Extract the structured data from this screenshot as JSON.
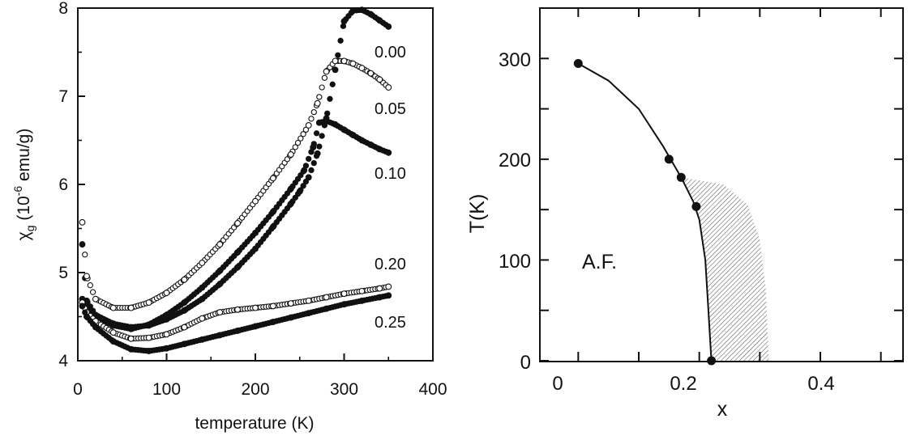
{
  "chart_data": [
    {
      "type": "scatter",
      "xlabel": "temperature (K)",
      "ylabel_main": "χ",
      "ylabel_sub": "g",
      "ylabel_rest": " (10",
      "ylabel_sup": "-6",
      "ylabel_units": " emu/g)",
      "xlim": [
        0,
        400
      ],
      "ylim": [
        4,
        8
      ],
      "xticks": [
        "0",
        "100",
        "200",
        "300",
        "400"
      ],
      "yticks": [
        "4",
        "5",
        "6",
        "7",
        "8"
      ],
      "grid": false,
      "series": [
        {
          "label": "0.00",
          "marker": "filled",
          "points": [
            [
              5,
              5.32
            ],
            [
              10,
              4.68
            ],
            [
              20,
              4.52
            ],
            [
              40,
              4.42
            ],
            [
              60,
              4.38
            ],
            [
              80,
              4.4
            ],
            [
              100,
              4.47
            ],
            [
              120,
              4.57
            ],
            [
              140,
              4.7
            ],
            [
              160,
              4.87
            ],
            [
              180,
              5.06
            ],
            [
              200,
              5.27
            ],
            [
              220,
              5.52
            ],
            [
              240,
              5.78
            ],
            [
              250,
              5.92
            ],
            [
              260,
              6.08
            ],
            [
              270,
              6.35
            ],
            [
              280,
              6.75
            ],
            [
              290,
              7.3
            ],
            [
              300,
              7.85
            ],
            [
              310,
              7.97
            ],
            [
              320,
              7.98
            ],
            [
              330,
              7.93
            ],
            [
              340,
              7.86
            ],
            [
              350,
              7.79
            ]
          ]
        },
        {
          "label": "0.05",
          "marker": "open",
          "points": [
            [
              5,
              5.57
            ],
            [
              10,
              4.96
            ],
            [
              20,
              4.7
            ],
            [
              40,
              4.6
            ],
            [
              60,
              4.6
            ],
            [
              80,
              4.66
            ],
            [
              100,
              4.77
            ],
            [
              120,
              4.92
            ],
            [
              140,
              5.11
            ],
            [
              160,
              5.32
            ],
            [
              180,
              5.56
            ],
            [
              200,
              5.81
            ],
            [
              220,
              6.07
            ],
            [
              240,
              6.34
            ],
            [
              260,
              6.67
            ],
            [
              270,
              6.92
            ],
            [
              280,
              7.28
            ],
            [
              290,
              7.4
            ],
            [
              300,
              7.4
            ],
            [
              310,
              7.37
            ],
            [
              320,
              7.32
            ],
            [
              330,
              7.26
            ],
            [
              340,
              7.19
            ],
            [
              350,
              7.1
            ]
          ]
        },
        {
          "label": "0.10",
          "marker": "filled",
          "points": [
            [
              5,
              4.7
            ],
            [
              10,
              4.6
            ],
            [
              20,
              4.5
            ],
            [
              40,
              4.4
            ],
            [
              60,
              4.36
            ],
            [
              80,
              4.41
            ],
            [
              100,
              4.52
            ],
            [
              120,
              4.66
            ],
            [
              140,
              4.83
            ],
            [
              160,
              5.02
            ],
            [
              180,
              5.23
            ],
            [
              200,
              5.45
            ],
            [
              220,
              5.69
            ],
            [
              240,
              5.95
            ],
            [
              255,
              6.16
            ],
            [
              265,
              6.42
            ],
            [
              272,
              6.7
            ],
            [
              280,
              6.72
            ],
            [
              290,
              6.68
            ],
            [
              300,
              6.62
            ],
            [
              310,
              6.56
            ],
            [
              320,
              6.5
            ],
            [
              330,
              6.45
            ],
            [
              340,
              6.4
            ],
            [
              350,
              6.36
            ]
          ]
        },
        {
          "label": "0.20",
          "marker": "open",
          "points": [
            [
              5,
              4.66
            ],
            [
              10,
              4.55
            ],
            [
              20,
              4.45
            ],
            [
              40,
              4.32
            ],
            [
              60,
              4.25
            ],
            [
              80,
              4.26
            ],
            [
              100,
              4.3
            ],
            [
              120,
              4.38
            ],
            [
              140,
              4.48
            ],
            [
              160,
              4.55
            ],
            [
              180,
              4.58
            ],
            [
              200,
              4.6
            ],
            [
              220,
              4.62
            ],
            [
              240,
              4.65
            ],
            [
              260,
              4.68
            ],
            [
              280,
              4.72
            ],
            [
              300,
              4.76
            ],
            [
              320,
              4.79
            ],
            [
              340,
              4.82
            ],
            [
              350,
              4.84
            ]
          ]
        },
        {
          "label": "0.25",
          "marker": "filled",
          "points": [
            [
              5,
              4.62
            ],
            [
              10,
              4.5
            ],
            [
              20,
              4.38
            ],
            [
              40,
              4.22
            ],
            [
              60,
              4.13
            ],
            [
              80,
              4.11
            ],
            [
              100,
              4.14
            ],
            [
              120,
              4.19
            ],
            [
              140,
              4.24
            ],
            [
              160,
              4.29
            ],
            [
              180,
              4.34
            ],
            [
              200,
              4.39
            ],
            [
              220,
              4.44
            ],
            [
              240,
              4.49
            ],
            [
              260,
              4.54
            ],
            [
              280,
              4.59
            ],
            [
              300,
              4.64
            ],
            [
              320,
              4.68
            ],
            [
              340,
              4.72
            ],
            [
              350,
              4.74
            ]
          ]
        }
      ]
    },
    {
      "type": "line",
      "xlabel": "x",
      "ylabel": "T(K)",
      "xlim": [
        -0.05,
        0.55
      ],
      "ylim": [
        0,
        350
      ],
      "xticks": [
        "0",
        "0.2",
        "0.4"
      ],
      "yticks": [
        "0",
        "100",
        "200",
        "300"
      ],
      "grid": false,
      "annotation": "A.F.",
      "points": [
        [
          0.0,
          295
        ],
        [
          0.15,
          200
        ],
        [
          0.17,
          182
        ],
        [
          0.195,
          153
        ],
        [
          0.22,
          0
        ]
      ],
      "curve": [
        [
          0.0,
          295
        ],
        [
          0.05,
          278
        ],
        [
          0.1,
          250
        ],
        [
          0.14,
          213
        ],
        [
          0.17,
          182
        ],
        [
          0.19,
          158
        ],
        [
          0.2,
          140
        ],
        [
          0.21,
          100
        ],
        [
          0.215,
          50
        ],
        [
          0.22,
          0
        ]
      ],
      "shaded_region_upper": [
        [
          0.17,
          182
        ],
        [
          0.24,
          175
        ],
        [
          0.28,
          155
        ],
        [
          0.3,
          120
        ],
        [
          0.31,
          70
        ],
        [
          0.315,
          0
        ]
      ]
    }
  ]
}
